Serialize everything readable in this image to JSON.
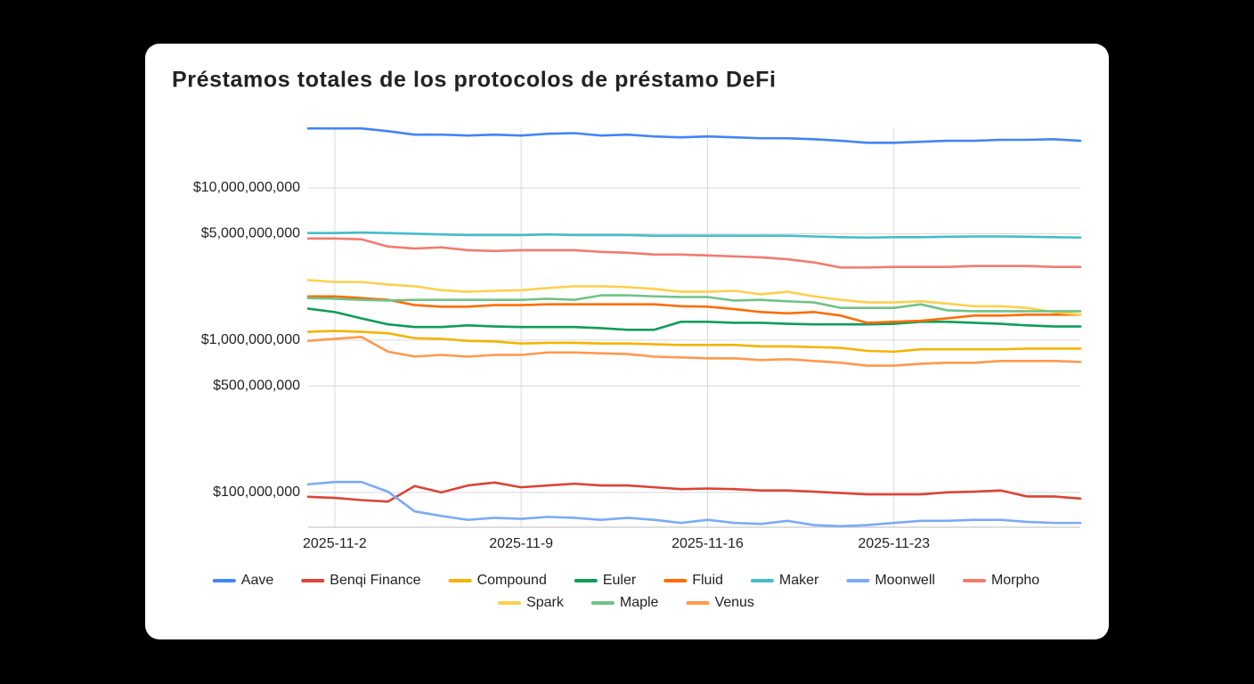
{
  "chart_data": {
    "type": "line",
    "title": "Préstamos totales de los protocolos de préstamo DeFi",
    "x": [
      "2025-11-01",
      "2025-11-02",
      "2025-11-03",
      "2025-11-04",
      "2025-11-05",
      "2025-11-06",
      "2025-11-07",
      "2025-11-08",
      "2025-11-09",
      "2025-11-10",
      "2025-11-11",
      "2025-11-12",
      "2025-11-13",
      "2025-11-14",
      "2025-11-15",
      "2025-11-16",
      "2025-11-17",
      "2025-11-18",
      "2025-11-19",
      "2025-11-20",
      "2025-11-21",
      "2025-11-22",
      "2025-11-23",
      "2025-11-24",
      "2025-11-25",
      "2025-11-26",
      "2025-11-27",
      "2025-11-28",
      "2025-11-29",
      "2025-11-30"
    ],
    "xlim": [
      "2025-11-01",
      "2025-11-30"
    ],
    "xticks": [
      {
        "value": "2025-11-02",
        "label": "2025-11-2"
      },
      {
        "value": "2025-11-09",
        "label": "2025-11-9"
      },
      {
        "value": "2025-11-16",
        "label": "2025-11-16"
      },
      {
        "value": "2025-11-23",
        "label": "2025-11-23"
      }
    ],
    "yscale": "log",
    "ylim": [
      59000000,
      25000000000
    ],
    "yticks": [
      {
        "value": 100000000,
        "label": "$100,000,000"
      },
      {
        "value": 500000000,
        "label": "$500,000,000"
      },
      {
        "value": 1000000000,
        "label": "$1,000,000,000"
      },
      {
        "value": 5000000000,
        "label": "$5,000,000,000"
      },
      {
        "value": 10000000000,
        "label": "$10,000,000,000"
      }
    ],
    "grid": true,
    "legend": "bottom",
    "series": [
      {
        "name": "Aave",
        "color": "#4285f4",
        "values": [
          24600000000.0,
          24600000000.0,
          24600000000.0,
          23600000000.0,
          22400000000.0,
          22400000000.0,
          22100000000.0,
          22400000000.0,
          22100000000.0,
          22700000000.0,
          22900000000.0,
          22100000000.0,
          22400000000.0,
          21800000000.0,
          21500000000.0,
          21800000000.0,
          21500000000.0,
          21200000000.0,
          21200000000.0,
          20900000000.0,
          20400000000.0,
          19800000000.0,
          19800000000.0,
          20100000000.0,
          20400000000.0,
          20400000000.0,
          20700000000.0,
          20700000000.0,
          20900000000.0,
          20400000000.0
        ]
      },
      {
        "name": "Benqi Finance",
        "color": "#db4437",
        "values": [
          93500000.0,
          92000000.0,
          89000000.0,
          87000000.0,
          110000000.0,
          100000000.0,
          111000000.0,
          116000000.0,
          108000000.0,
          111000000.0,
          114000000.0,
          111000000.0,
          111000000.0,
          108000000.0,
          105000000.0,
          106000000.0,
          105000000.0,
          103000000.0,
          103000000.0,
          101000000.0,
          99000000.0,
          97000000.0,
          97000000.0,
          97000000.0,
          100000000.0,
          101000000.0,
          103000000.0,
          94000000.0,
          94000000.0,
          91000000.0
        ]
      },
      {
        "name": "Compound",
        "color": "#f4b400",
        "values": [
          1135000000.0,
          1150000000.0,
          1135000000.0,
          1110000000.0,
          1030000000.0,
          1020000000.0,
          990000000.0,
          980000000.0,
          950000000.0,
          960000000.0,
          960000000.0,
          950000000.0,
          950000000.0,
          940000000.0,
          930000000.0,
          930000000.0,
          930000000.0,
          910000000.0,
          910000000.0,
          900000000.0,
          890000000.0,
          850000000.0,
          840000000.0,
          870000000.0,
          870000000.0,
          870000000.0,
          870000000.0,
          880000000.0,
          880000000.0,
          880000000.0
        ]
      },
      {
        "name": "Euler",
        "color": "#0f9d58",
        "values": [
          1610000000.0,
          1530000000.0,
          1390000000.0,
          1270000000.0,
          1220000000.0,
          1220000000.0,
          1250000000.0,
          1230000000.0,
          1220000000.0,
          1220000000.0,
          1220000000.0,
          1200000000.0,
          1170000000.0,
          1170000000.0,
          1320000000.0,
          1320000000.0,
          1300000000.0,
          1300000000.0,
          1280000000.0,
          1270000000.0,
          1270000000.0,
          1270000000.0,
          1280000000.0,
          1320000000.0,
          1320000000.0,
          1300000000.0,
          1280000000.0,
          1250000000.0,
          1230000000.0,
          1230000000.0
        ]
      },
      {
        "name": "Fluid",
        "color": "#ff6d01",
        "values": [
          1940000000.0,
          1940000000.0,
          1890000000.0,
          1840000000.0,
          1700000000.0,
          1660000000.0,
          1660000000.0,
          1700000000.0,
          1700000000.0,
          1720000000.0,
          1720000000.0,
          1720000000.0,
          1720000000.0,
          1720000000.0,
          1670000000.0,
          1660000000.0,
          1600000000.0,
          1530000000.0,
          1500000000.0,
          1530000000.0,
          1450000000.0,
          1300000000.0,
          1320000000.0,
          1340000000.0,
          1390000000.0,
          1450000000.0,
          1450000000.0,
          1470000000.0,
          1470000000.0,
          1470000000.0
        ]
      },
      {
        "name": "Maker",
        "color": "#46bdc6",
        "values": [
          5050000000.0,
          5050000000.0,
          5100000000.0,
          5050000000.0,
          5000000000.0,
          4950000000.0,
          4900000000.0,
          4900000000.0,
          4900000000.0,
          4950000000.0,
          4900000000.0,
          4900000000.0,
          4900000000.0,
          4850000000.0,
          4850000000.0,
          4850000000.0,
          4850000000.0,
          4850000000.0,
          4850000000.0,
          4800000000.0,
          4750000000.0,
          4720000000.0,
          4750000000.0,
          4750000000.0,
          4780000000.0,
          4800000000.0,
          4800000000.0,
          4780000000.0,
          4750000000.0,
          4720000000.0
        ]
      },
      {
        "name": "Moonwell",
        "color": "#7baaf7",
        "values": [
          113000000.0,
          117000000.0,
          117000000.0,
          101000000.0,
          75000000.0,
          70000000.0,
          66000000.0,
          68000000.0,
          67000000.0,
          69000000.0,
          68000000.0,
          66000000.0,
          68000000.0,
          66000000.0,
          63000000.0,
          66000000.0,
          63000000.0,
          62000000.0,
          65000000.0,
          61000000.0,
          60000000.0,
          61000000.0,
          63000000.0,
          65000000.0,
          65000000.0,
          66000000.0,
          66000000.0,
          64000000.0,
          63000000.0,
          63000000.0
        ]
      },
      {
        "name": "Morpho",
        "color": "#f07b72",
        "values": [
          4650000000.0,
          4650000000.0,
          4600000000.0,
          4120000000.0,
          4000000000.0,
          4070000000.0,
          3900000000.0,
          3850000000.0,
          3900000000.0,
          3900000000.0,
          3900000000.0,
          3800000000.0,
          3750000000.0,
          3650000000.0,
          3650000000.0,
          3600000000.0,
          3550000000.0,
          3500000000.0,
          3400000000.0,
          3240000000.0,
          3000000000.0,
          3000000000.0,
          3030000000.0,
          3030000000.0,
          3030000000.0,
          3070000000.0,
          3070000000.0,
          3070000000.0,
          3030000000.0,
          3030000000.0
        ]
      },
      {
        "name": "Spark",
        "color": "#fcd04f",
        "values": [
          2480000000.0,
          2410000000.0,
          2410000000.0,
          2320000000.0,
          2260000000.0,
          2130000000.0,
          2080000000.0,
          2110000000.0,
          2130000000.0,
          2200000000.0,
          2260000000.0,
          2260000000.0,
          2230000000.0,
          2170000000.0,
          2080000000.0,
          2080000000.0,
          2110000000.0,
          2000000000.0,
          2080000000.0,
          1940000000.0,
          1840000000.0,
          1770000000.0,
          1770000000.0,
          1800000000.0,
          1740000000.0,
          1670000000.0,
          1670000000.0,
          1630000000.0,
          1530000000.0,
          1470000000.0
        ]
      },
      {
        "name": "Maple",
        "color": "#71c287",
        "values": [
          1890000000.0,
          1870000000.0,
          1840000000.0,
          1820000000.0,
          1840000000.0,
          1840000000.0,
          1840000000.0,
          1840000000.0,
          1840000000.0,
          1870000000.0,
          1840000000.0,
          1970000000.0,
          1970000000.0,
          1940000000.0,
          1920000000.0,
          1920000000.0,
          1820000000.0,
          1840000000.0,
          1800000000.0,
          1770000000.0,
          1630000000.0,
          1630000000.0,
          1630000000.0,
          1720000000.0,
          1570000000.0,
          1550000000.0,
          1550000000.0,
          1550000000.0,
          1550000000.0,
          1550000000.0
        ]
      },
      {
        "name": "Venus",
        "color": "#ff994d",
        "values": [
          990000000.0,
          1020000000.0,
          1050000000.0,
          840000000.0,
          780000000.0,
          800000000.0,
          780000000.0,
          800000000.0,
          800000000.0,
          830000000.0,
          830000000.0,
          820000000.0,
          810000000.0,
          780000000.0,
          770000000.0,
          760000000.0,
          760000000.0,
          740000000.0,
          750000000.0,
          730000000.0,
          710000000.0,
          680000000.0,
          680000000.0,
          700000000.0,
          710000000.0,
          710000000.0,
          730000000.0,
          730000000.0,
          730000000.0,
          720000000.0
        ]
      }
    ]
  }
}
